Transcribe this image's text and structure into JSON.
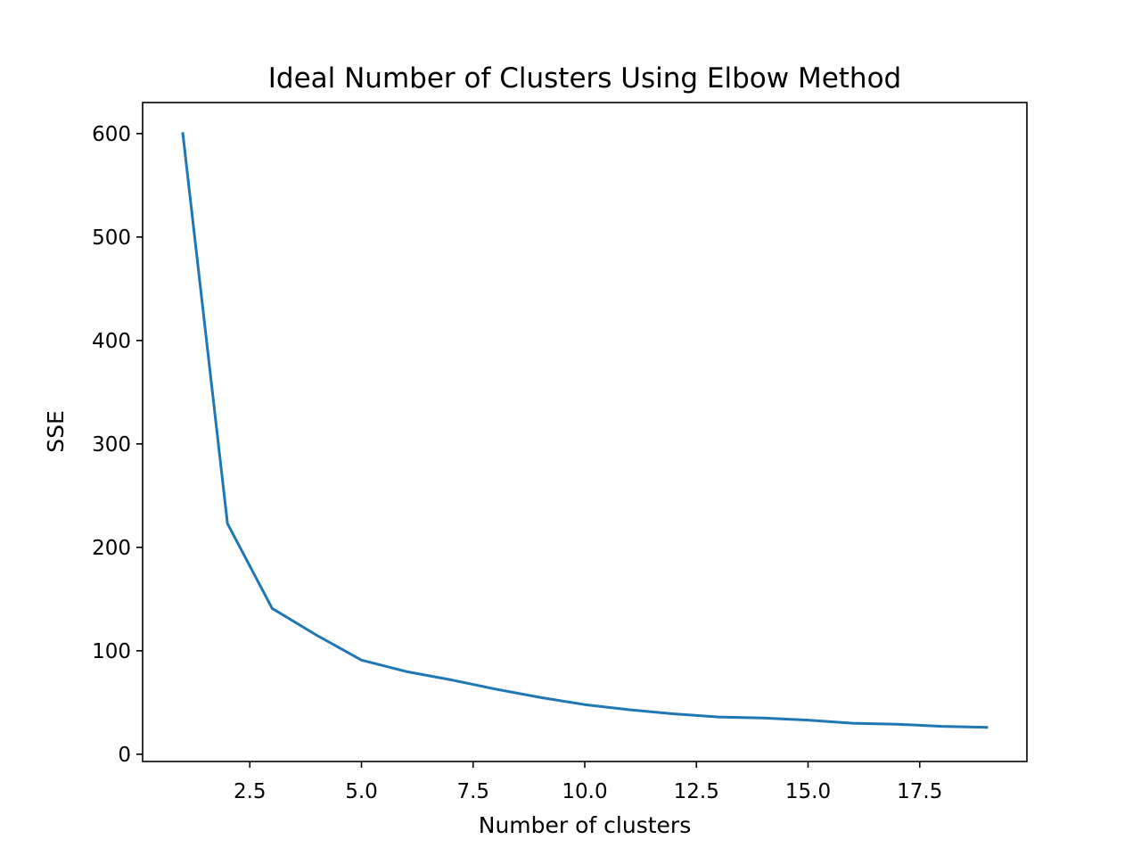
{
  "chart_data": {
    "type": "line",
    "title": "Ideal Number of Clusters Using Elbow Method",
    "xlabel": "Number of clusters",
    "ylabel": "SSE",
    "xlim": [
      0.1,
      19.9
    ],
    "ylim": [
      -7,
      630
    ],
    "xticks": [
      2.5,
      5.0,
      7.5,
      10.0,
      12.5,
      15.0,
      17.5
    ],
    "xtick_labels": [
      "2.5",
      "5.0",
      "7.5",
      "10.0",
      "12.5",
      "15.0",
      "17.5"
    ],
    "yticks": [
      0,
      100,
      200,
      300,
      400,
      500,
      600
    ],
    "ytick_labels": [
      "0",
      "100",
      "200",
      "300",
      "400",
      "500",
      "600"
    ],
    "grid": false,
    "series": [
      {
        "color": "#1f77b4",
        "x": [
          1,
          2,
          3,
          4,
          5,
          6,
          7,
          8,
          9,
          10,
          11,
          12,
          13,
          14,
          15,
          16,
          17,
          18,
          19
        ],
        "values": [
          600,
          223,
          141,
          115,
          91,
          80,
          72,
          63,
          55,
          48,
          43,
          39,
          36,
          35,
          33,
          30,
          29,
          27,
          26
        ]
      }
    ]
  }
}
